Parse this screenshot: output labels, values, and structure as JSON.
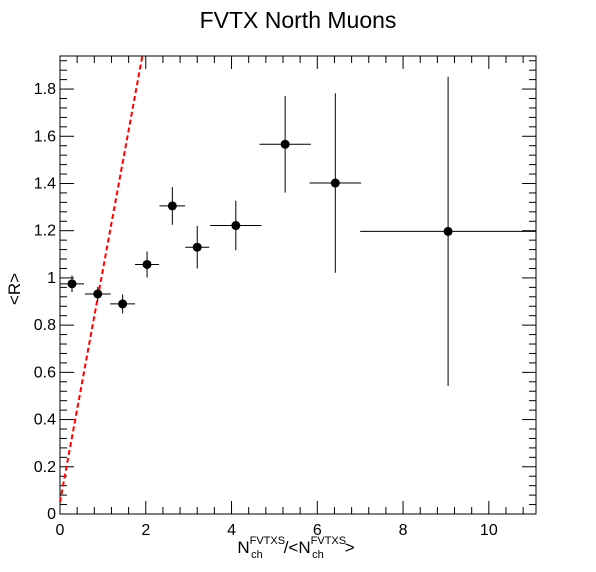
{
  "chart_data": {
    "type": "scatter",
    "title": "FVTX North Muons",
    "ylabel": "<R>",
    "xlabel": {
      "parts": [
        {
          "text": "N",
          "pos": "base"
        },
        {
          "text": "FVTXS",
          "pos": "sup"
        },
        {
          "text": "ch",
          "pos": "sub"
        },
        {
          "text": "/<N",
          "pos": "base"
        },
        {
          "text": "FVTXS",
          "pos": "sup"
        },
        {
          "text": "ch",
          "pos": "sub"
        },
        {
          "text": ">",
          "pos": "base"
        }
      ]
    },
    "xlim": [
      0,
      11.1
    ],
    "ylim": [
      0,
      1.94
    ],
    "x_ticks": [
      0,
      2,
      4,
      6,
      8,
      10
    ],
    "y_ticks": [
      0,
      0.2,
      0.4,
      0.6,
      0.8,
      1,
      1.2,
      1.4,
      1.6,
      1.8
    ],
    "grid": false,
    "series": [
      {
        "marker_color": "#000000",
        "points": [
          {
            "x": 0.28,
            "y": 0.975,
            "xerr": 0.28,
            "yerr": 0.035
          },
          {
            "x": 0.88,
            "y": 0.932,
            "xerr": 0.3,
            "yerr": 0.03
          },
          {
            "x": 1.46,
            "y": 0.89,
            "xerr": 0.29,
            "yerr": 0.04
          },
          {
            "x": 2.03,
            "y": 1.057,
            "xerr": 0.28,
            "yerr": 0.055
          },
          {
            "x": 2.62,
            "y": 1.305,
            "xerr": 0.3,
            "yerr": 0.08
          },
          {
            "x": 3.2,
            "y": 1.13,
            "xerr": 0.28,
            "yerr": 0.09
          },
          {
            "x": 4.1,
            "y": 1.222,
            "xerr": 0.6,
            "yerr": 0.105
          },
          {
            "x": 5.25,
            "y": 1.566,
            "xerr": 0.6,
            "yerr": 0.205
          },
          {
            "x": 6.42,
            "y": 1.402,
            "xerr": 0.6,
            "yerr": 0.38
          },
          {
            "x": 9.05,
            "y": 1.197,
            "xerr": 2.05,
            "yerr": 0.655
          }
        ]
      }
    ],
    "reference_line": {
      "x0": 0.0,
      "y0": 0.05,
      "x1": 1.92,
      "y1": 1.94,
      "color": "#ff0000",
      "style": "dashed"
    }
  }
}
